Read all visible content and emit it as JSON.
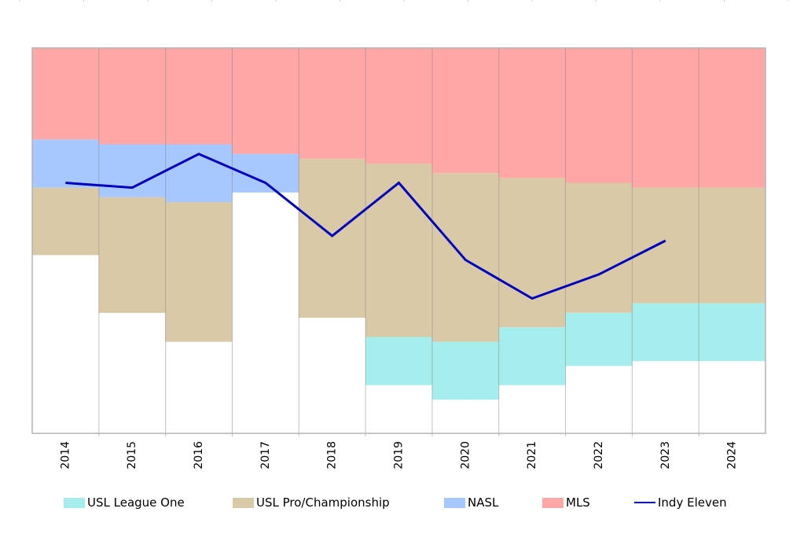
{
  "chart_data": {
    "type": "bar",
    "subtype": "stacked-column-with-line",
    "title": "",
    "xlabel": "",
    "ylabel": "",
    "y_axis": {
      "inverted": true,
      "range": [
        0,
        80
      ],
      "tick_labels_visible": false
    },
    "grid": false,
    "categories": [
      "2014",
      "2015",
      "2016",
      "2017",
      "2018",
      "2019",
      "2020",
      "2021",
      "2022",
      "2023",
      "2024"
    ],
    "series": [
      {
        "name": "MLS",
        "kind": "stacked-bar",
        "color": "#ffa6a6",
        "values": [
          19,
          20,
          20,
          22,
          23,
          24,
          26,
          27,
          28,
          29,
          29
        ]
      },
      {
        "name": "NASL",
        "kind": "stacked-bar",
        "color": "#a6c8ff",
        "values": [
          10,
          11,
          12,
          8,
          0,
          0,
          0,
          0,
          0,
          0,
          0
        ]
      },
      {
        "name": "USL Pro/Championship",
        "kind": "stacked-bar",
        "color": "#dac9a6",
        "values": [
          14,
          24,
          29,
          0,
          33,
          36,
          35,
          31,
          27,
          24,
          24
        ]
      },
      {
        "name": "USL League One",
        "kind": "stacked-bar",
        "color": "#a6eeed",
        "values": [
          0,
          0,
          0,
          0,
          0,
          10,
          12,
          12,
          11,
          12,
          12
        ]
      },
      {
        "name": "Indy Eleven",
        "kind": "line",
        "color": "#0000c0",
        "values": [
          28,
          29,
          22,
          28,
          39,
          28,
          44,
          52,
          47,
          40,
          null
        ]
      }
    ],
    "legend": {
      "placement": "bottom",
      "entries": [
        {
          "label": "USL League One",
          "color": "#a6eeed",
          "kind": "swatch"
        },
        {
          "label": "USL Pro/Championship",
          "color": "#dac9a6",
          "kind": "swatch"
        },
        {
          "label": "NASL",
          "color": "#a6c8ff",
          "kind": "swatch"
        },
        {
          "label": "MLS",
          "color": "#ffa6a6",
          "kind": "swatch"
        },
        {
          "label": "Indy Eleven",
          "color": "#0000c0",
          "kind": "line"
        }
      ]
    }
  }
}
